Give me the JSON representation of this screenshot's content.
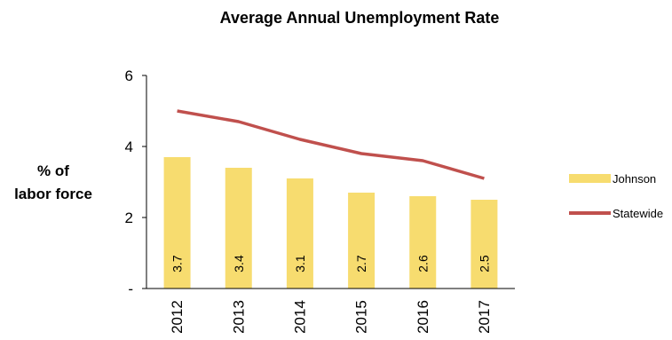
{
  "chart_data": {
    "type": "bar",
    "title": "Average Annual Unemployment Rate",
    "ylabel_lines": [
      "% of",
      "labor force"
    ],
    "xlabel": "",
    "categories": [
      "2012",
      "2013",
      "2014",
      "2015",
      "2016",
      "2017"
    ],
    "ylim": [
      0,
      6
    ],
    "y_ticks": [
      {
        "value": 0,
        "label": "-"
      },
      {
        "value": 2,
        "label": "2"
      },
      {
        "value": 4,
        "label": "4"
      },
      {
        "value": 6,
        "label": "6"
      }
    ],
    "grid": false,
    "legend_position": "right",
    "series": [
      {
        "name": "Johnson",
        "type": "bar",
        "color": "#F7DC6F",
        "values": [
          3.7,
          3.4,
          3.1,
          2.7,
          2.6,
          2.5
        ],
        "data_labels": [
          "3.7",
          "3.4",
          "3.1",
          "2.7",
          "2.6",
          "2.5"
        ]
      },
      {
        "name": "Statewide",
        "type": "line",
        "color": "#C0504D",
        "values": [
          5.0,
          4.7,
          4.2,
          3.8,
          3.6,
          3.1
        ]
      }
    ]
  }
}
